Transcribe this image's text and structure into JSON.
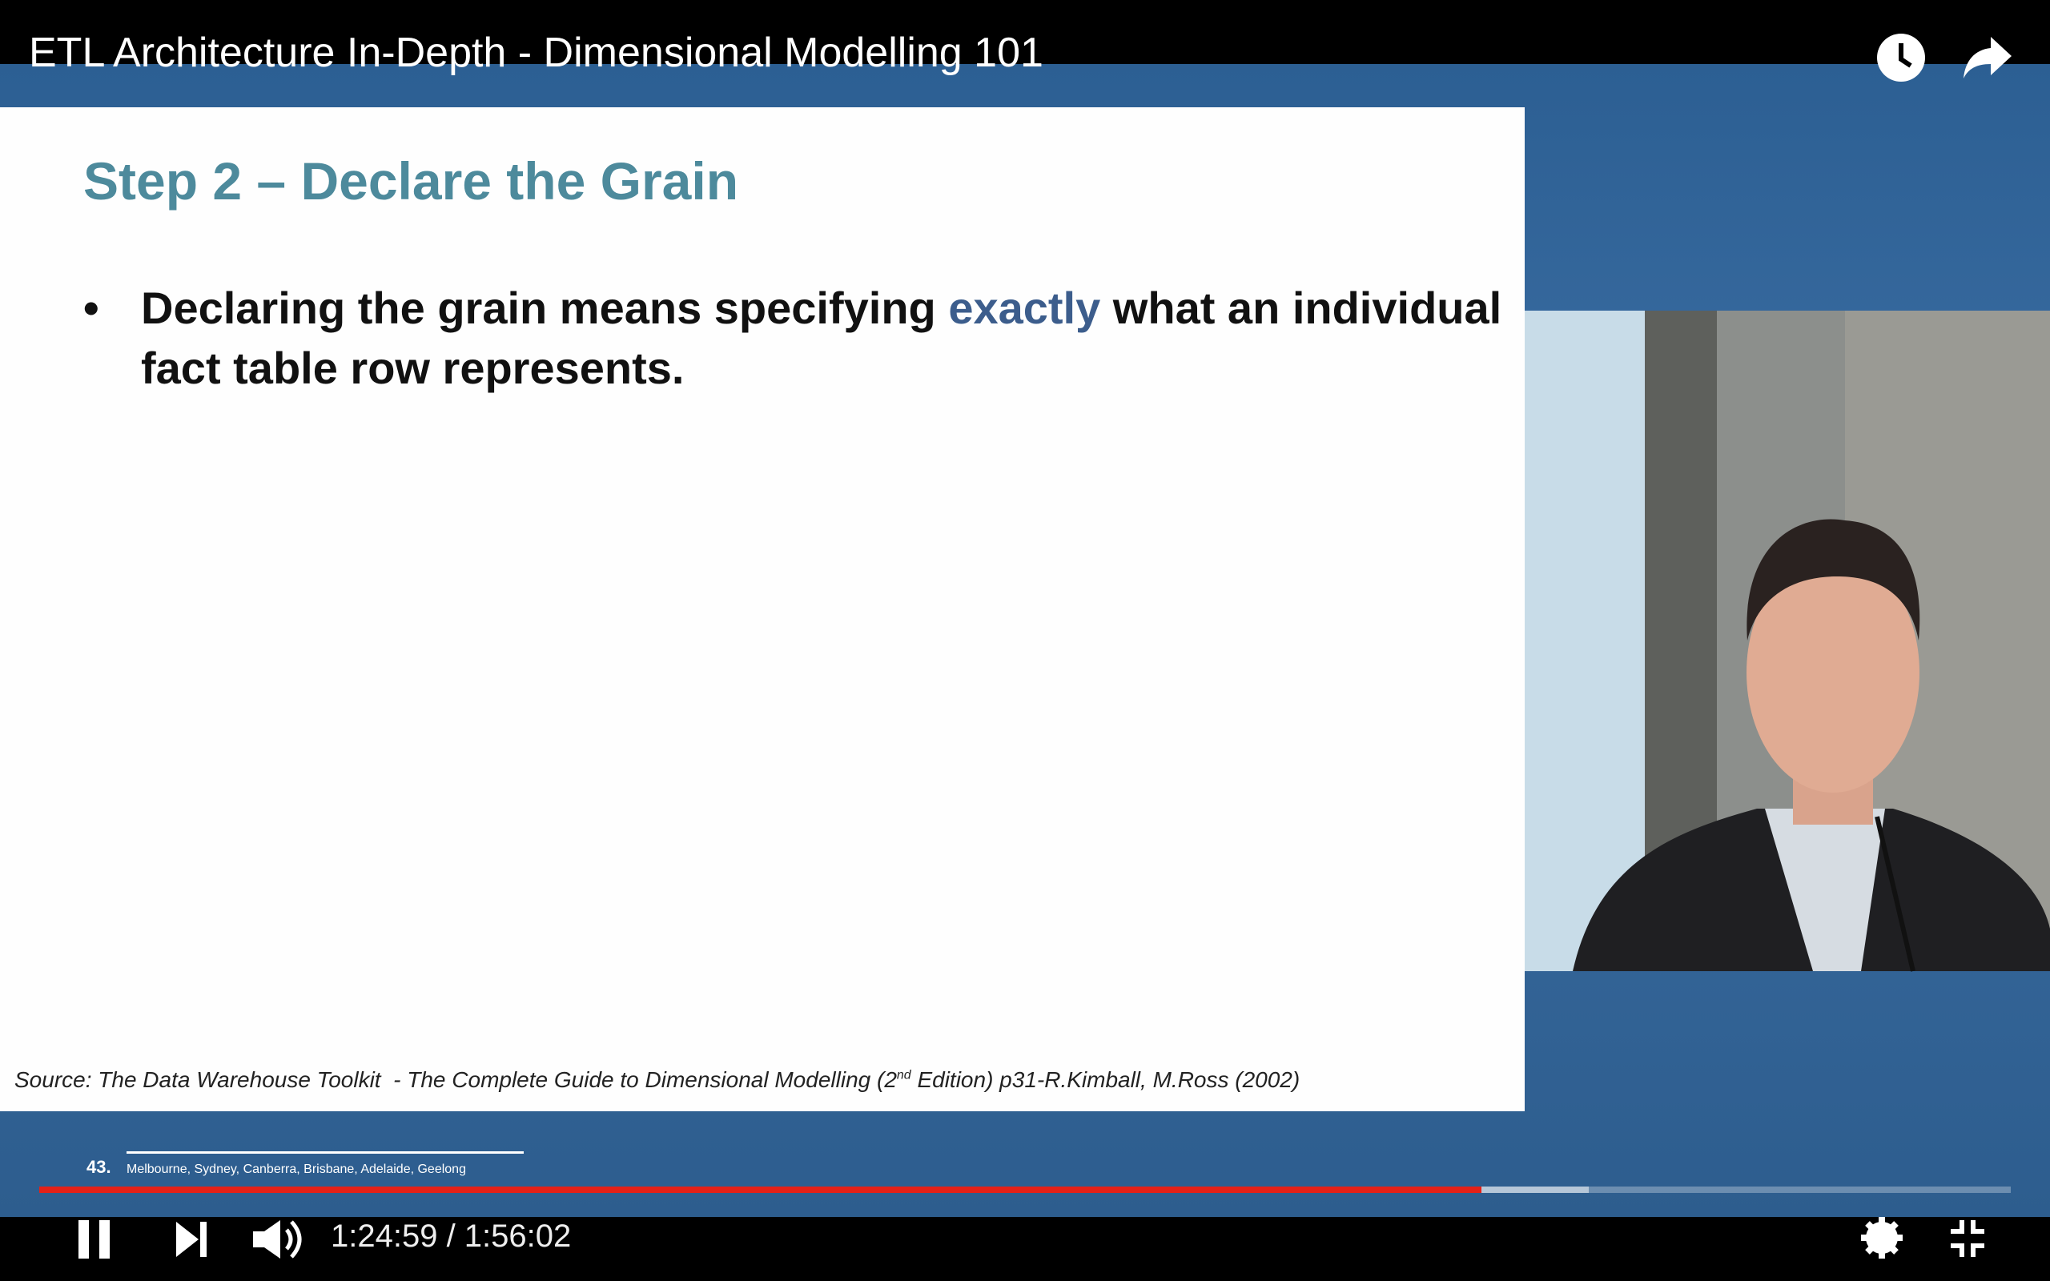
{
  "header": {
    "title": "ETL Architecture In-Depth - Dimensional Modelling 101"
  },
  "slide": {
    "title": "Step 2 – Declare the Grain",
    "bullet": {
      "line1_start": "Declaring the grain means specifying ",
      "highlight": "exactly",
      "line1_end": " what an individual",
      "line2": "fact table row represents."
    },
    "source": {
      "before": "Source: The Data Warehouse Toolkit  - The Complete Guide to Dimensional Modelling (2",
      "superscript": "nd",
      "after": " Edition) p31-R.Kimball, M.Ross (2002)"
    },
    "footer": {
      "page": "43.",
      "locations": "Melbourne, Sydney, Canberra, Brisbane, Adelaide, Geelong"
    }
  },
  "player": {
    "time": "1:24:59 / 1:56:02"
  }
}
